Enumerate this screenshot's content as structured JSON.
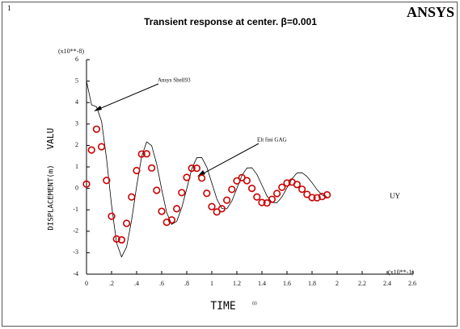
{
  "chart_data": {
    "type": "line",
    "frame_number": "1",
    "logo": "ANSYS",
    "title": "Transient response at center. β=0.001",
    "y_multiplier": "(x10**-8)",
    "x_multiplier": "(x10**-1)",
    "ylabel": "DISPLACEMENT(m)",
    "ylabel2": "VALU",
    "xlabel": "TIME",
    "xunit": "(s)",
    "variable": "UY",
    "annotations": [
      "Ansys Shell93",
      "Elt fini GAG"
    ],
    "xlim": [
      0,
      2.6
    ],
    "ylim": [
      -4,
      6
    ],
    "xticks": [
      0,
      {
        "value": 0.2,
        "label": ".2"
      },
      {
        "value": 0.4,
        "label": ".4"
      },
      {
        "value": 0.6,
        "label": ".6"
      },
      {
        "value": 0.8,
        "label": ".8"
      },
      1,
      1.2,
      1.4,
      1.6,
      1.8,
      2,
      2.2,
      2.4,
      2.6
    ],
    "yticks": [
      -4,
      -3,
      -2,
      -1,
      0,
      1,
      2,
      3,
      4,
      5,
      6
    ],
    "grid": false,
    "x": [
      0,
      0.04,
      0.08,
      0.12,
      0.16,
      0.2,
      0.24,
      0.28,
      0.32,
      0.36,
      0.4,
      0.44,
      0.48,
      0.52,
      0.56,
      0.6,
      0.64,
      0.68,
      0.72,
      0.76,
      0.8,
      0.84,
      0.88,
      0.92,
      0.96,
      1,
      1.04,
      1.08,
      1.12,
      1.16,
      1.2,
      1.24,
      1.28,
      1.32,
      1.36,
      1.4,
      1.44,
      1.48,
      1.52,
      1.56,
      1.6,
      1.64,
      1.68,
      1.72,
      1.76,
      1.8,
      1.84,
      1.88,
      1.92
    ],
    "series": [
      {
        "color": "#000000",
        "marker": "none",
        "values": [
          5.0,
          3.9,
          3.8,
          3.13,
          1.38,
          -0.79,
          -2.54,
          -3.2,
          -2.73,
          -1.48,
          0.1,
          1.48,
          2.17,
          1.99,
          1.14,
          -0.05,
          -1.13,
          -1.68,
          -1.54,
          -0.9,
          -0.02,
          0.9,
          1.43,
          1.44,
          0.99,
          0.25,
          -0.49,
          -0.94,
          -0.95,
          -0.59,
          0.0,
          0.59,
          0.95,
          0.96,
          0.65,
          0.15,
          -0.35,
          -0.66,
          -0.67,
          -0.4,
          0.03,
          0.45,
          0.72,
          0.73,
          0.55,
          0.26,
          -0.06,
          -0.31,
          -0.4
        ]
      },
      {
        "color": "#cc0000",
        "marker": "circle",
        "values": [
          0.2,
          1.79,
          2.76,
          1.94,
          0.37,
          -1.3,
          -2.36,
          -2.4,
          -1.63,
          -0.4,
          0.83,
          1.6,
          1.61,
          0.95,
          -0.09,
          -1.07,
          -1.58,
          -1.47,
          -0.95,
          -0.2,
          0.51,
          0.94,
          0.94,
          0.48,
          -0.23,
          -0.85,
          -1.1,
          -0.95,
          -0.55,
          -0.05,
          0.35,
          0.5,
          0.36,
          0.0,
          -0.4,
          -0.66,
          -0.68,
          -0.51,
          -0.24,
          0.05,
          0.25,
          0.29,
          0.18,
          -0.04,
          -0.28,
          -0.43,
          -0.44,
          -0.38,
          -0.3
        ]
      }
    ]
  }
}
